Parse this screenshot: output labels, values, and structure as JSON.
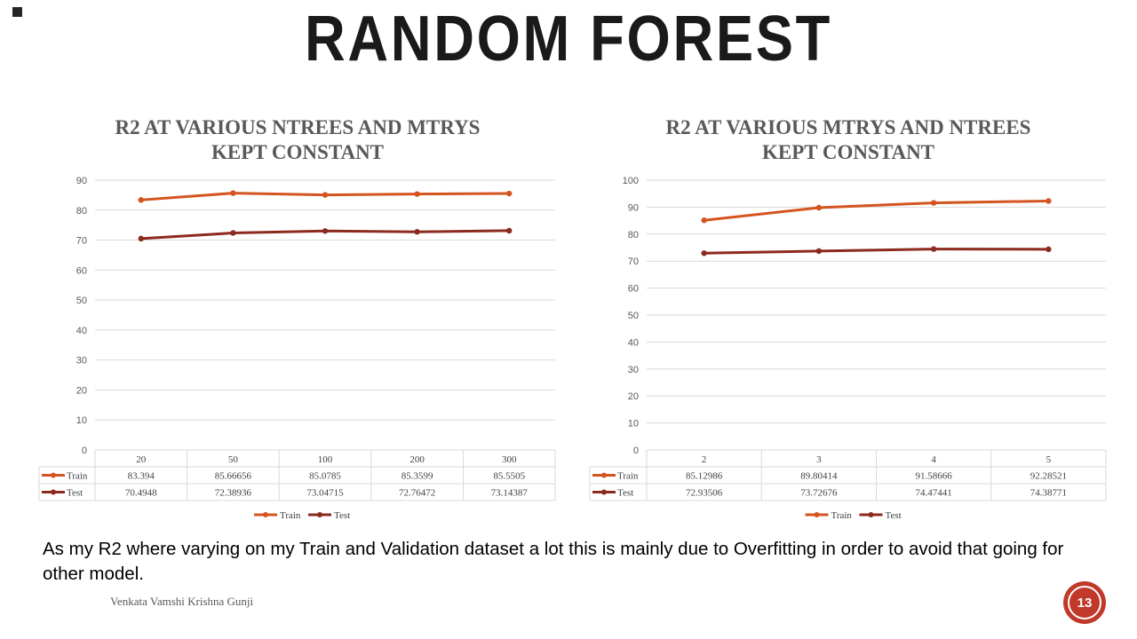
{
  "slide": {
    "title": "RANDOM FOREST",
    "body_text": "As my R2 where varying on my Train and Validation dataset a lot this is mainly due to Overfitting in order to avoid that going for other model.",
    "author": "Venkata Vamshi Krishna Gunji",
    "page_number": "13"
  },
  "colors": {
    "train": "#d4541f",
    "test": "#8b2a1e",
    "grid": "#d9d9d9",
    "badge": "#c0392b"
  },
  "chart_data": [
    {
      "type": "line",
      "title_lines": [
        "R2 AT VARIOUS NTREES AND MTRYS",
        "KEPT CONSTANT"
      ],
      "categories": [
        "20",
        "50",
        "100",
        "200",
        "300"
      ],
      "series": [
        {
          "name": "Train",
          "values": [
            "83.394",
            "85.66656",
            "85.0785",
            "85.3599",
            "85.5505"
          ]
        },
        {
          "name": "Test",
          "values": [
            "70.4948",
            "72.38936",
            "73.04715",
            "72.76472",
            "73.14387"
          ]
        }
      ],
      "ylim": [
        0,
        90
      ],
      "yticks": [
        "0",
        "10",
        "20",
        "30",
        "40",
        "50",
        "60",
        "70",
        "80",
        "90"
      ],
      "grid": true,
      "data_table": true,
      "legend": "bottom"
    },
    {
      "type": "line",
      "title_lines": [
        "R2 AT VARIOUS  MTRYS AND NTREES",
        "KEPT CONSTANT"
      ],
      "categories": [
        "2",
        "3",
        "4",
        "5"
      ],
      "series": [
        {
          "name": "Train",
          "values": [
            "85.12986",
            "89.80414",
            "91.58666",
            "92.28521"
          ]
        },
        {
          "name": "Test",
          "values": [
            "72.93506",
            "73.72676",
            "74.47441",
            "74.38771"
          ]
        }
      ],
      "ylim": [
        0,
        100
      ],
      "yticks": [
        "0",
        "10",
        "20",
        "30",
        "40",
        "50",
        "60",
        "70",
        "80",
        "90",
        "100"
      ],
      "grid": true,
      "data_table": true,
      "legend": "bottom"
    }
  ]
}
